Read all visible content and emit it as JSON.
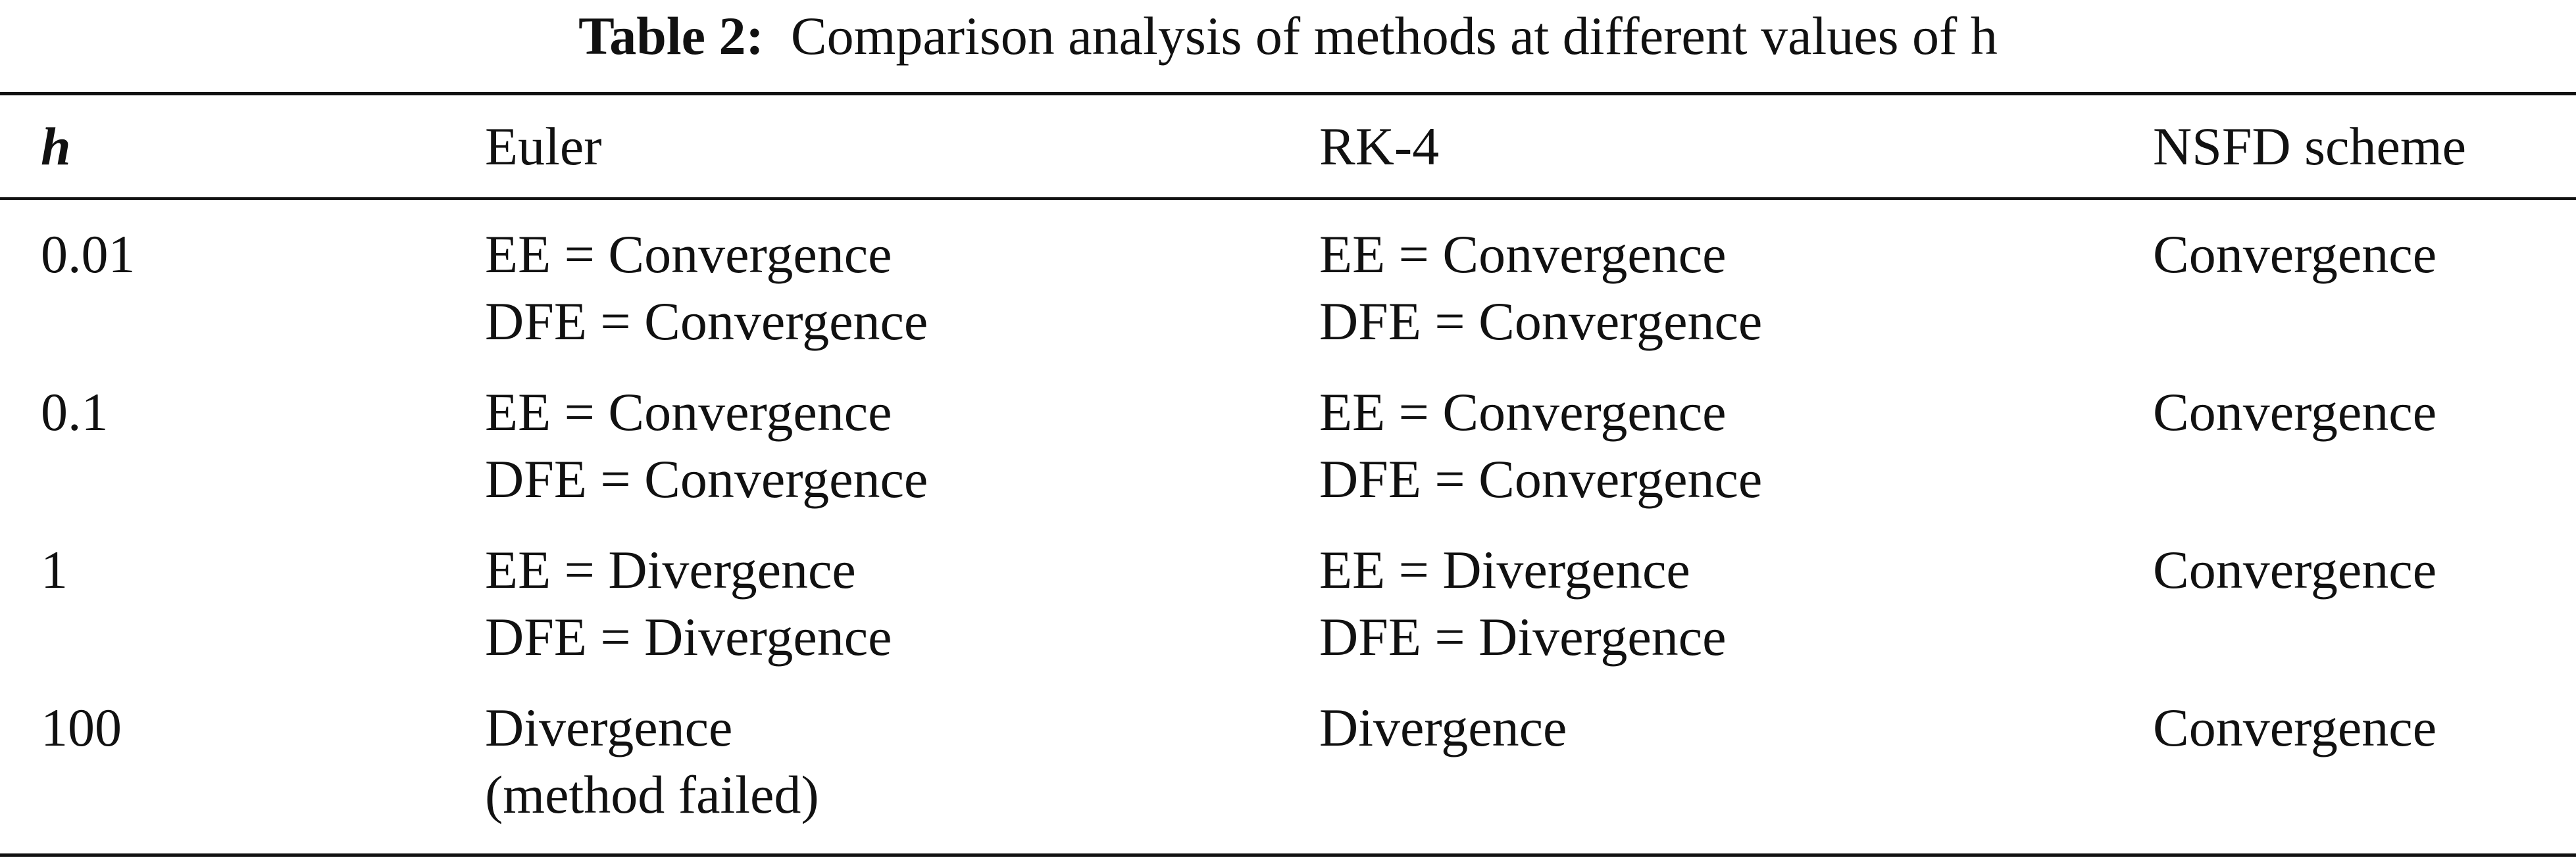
{
  "caption": {
    "label": "Table 2:",
    "text": "Comparison analysis of methods at different values of h"
  },
  "table": {
    "headers": [
      "h",
      "Euler",
      "RK-4",
      "NSFD scheme"
    ],
    "rows": [
      {
        "h": "0.01",
        "euler": [
          "EE = Convergence",
          "DFE = Convergence"
        ],
        "rk4": [
          "EE = Convergence",
          "DFE = Convergence"
        ],
        "nsfd": [
          "Convergence"
        ]
      },
      {
        "h": "0.1",
        "euler": [
          "EE = Convergence",
          "DFE = Convergence"
        ],
        "rk4": [
          "EE = Convergence",
          "DFE = Convergence"
        ],
        "nsfd": [
          "Convergence"
        ]
      },
      {
        "h": "1",
        "euler": [
          "EE = Divergence",
          "DFE = Divergence"
        ],
        "rk4": [
          "EE = Divergence",
          "DFE = Divergence"
        ],
        "nsfd": [
          "Convergence"
        ]
      },
      {
        "h": "100",
        "euler": [
          "Divergence",
          "(method failed)"
        ],
        "rk4": [
          "Divergence"
        ],
        "nsfd": [
          "Convergence"
        ]
      }
    ]
  }
}
